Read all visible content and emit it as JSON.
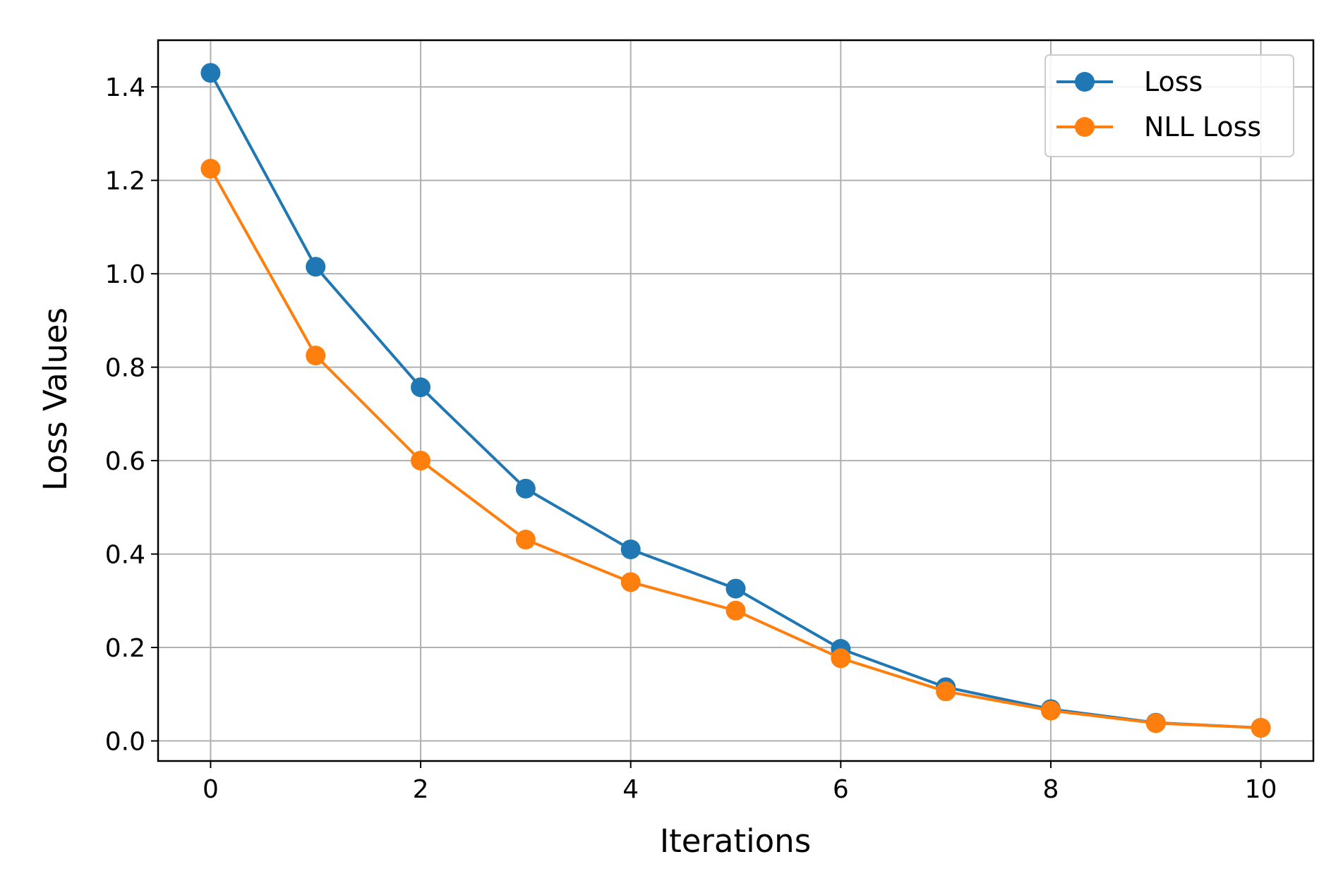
{
  "chart_data": {
    "type": "line",
    "title": "",
    "xlabel": "Iterations",
    "ylabel": "Loss Values",
    "xlim": [
      -0.5,
      10.5
    ],
    "ylim": [
      -0.043,
      1.5
    ],
    "xticks": [
      0,
      2,
      4,
      6,
      8,
      10
    ],
    "xtick_labels": [
      "0",
      "2",
      "4",
      "6",
      "8",
      "10"
    ],
    "yticks": [
      0.0,
      0.2,
      0.4,
      0.6,
      0.8,
      1.0,
      1.2,
      1.4
    ],
    "ytick_labels": [
      "0.0",
      "0.2",
      "0.4",
      "0.6",
      "0.8",
      "1.0",
      "1.2",
      "1.4"
    ],
    "grid": true,
    "legend_position": "top-right",
    "x": [
      0,
      1,
      2,
      3,
      4,
      5,
      6,
      7,
      8,
      9,
      10
    ],
    "series": [
      {
        "name": "Loss",
        "color": "#1f77b4",
        "marker": "circle",
        "values": [
          1.43,
          1.015,
          0.757,
          0.54,
          0.41,
          0.326,
          0.197,
          0.115,
          0.068,
          0.039,
          0.028
        ]
      },
      {
        "name": "NLL Loss",
        "color": "#ff7f0e",
        "marker": "circle",
        "values": [
          1.225,
          0.825,
          0.6,
          0.431,
          0.34,
          0.279,
          0.177,
          0.106,
          0.065,
          0.038,
          0.028
        ]
      }
    ]
  }
}
